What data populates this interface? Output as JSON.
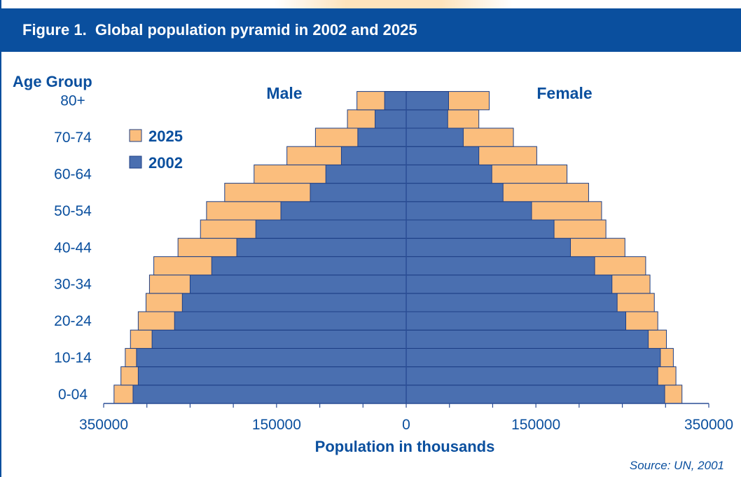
{
  "header": {
    "title": "Figure 1.  Global population pyramid in 2002 and 2025"
  },
  "source": "Source: UN, 2001",
  "colors": {
    "brand": "#0a4f9e",
    "bar_2002": "#4a6fb0",
    "bar_2025": "#fbbe7d",
    "bar_edge": "#1e3f86"
  },
  "chart_data": {
    "type": "bar",
    "orientation": "horizontal-pyramid",
    "y_title": "Age Group",
    "xlabel": "Population in thousands",
    "left_label": "Male",
    "right_label": "Female",
    "xlim": [
      -350000,
      350000
    ],
    "x_tick_labels": [
      "350000",
      "150000",
      "0",
      "150000",
      "350000"
    ],
    "x_tick_values": [
      -350000,
      -150000,
      0,
      150000,
      350000
    ],
    "y_tick_labels": [
      "80+",
      "70-74",
      "60-64",
      "50-54",
      "40-44",
      "30-34",
      "20-24",
      "10-14",
      "0-04"
    ],
    "categories": [
      "0-04",
      "5-9",
      "10-14",
      "15-19",
      "20-24",
      "25-29",
      "30-34",
      "35-39",
      "40-44",
      "45-49",
      "50-54",
      "55-59",
      "60-64",
      "65-69",
      "70-74",
      "75-79",
      "80+"
    ],
    "legend": [
      {
        "name": "2025",
        "color": "#fbbe7d"
      },
      {
        "name": "2002",
        "color": "#4a6fb0"
      }
    ],
    "series": [
      {
        "name": "2002",
        "sex": "Male",
        "values": [
          316000,
          310000,
          312000,
          294000,
          268000,
          259000,
          250000,
          225000,
          196000,
          174000,
          145000,
          111000,
          93000,
          75000,
          56000,
          36000,
          25000
        ]
      },
      {
        "name": "2002",
        "sex": "Female",
        "values": [
          299000,
          291000,
          294000,
          280000,
          254000,
          244000,
          238000,
          218000,
          190000,
          171000,
          145000,
          112000,
          99000,
          84000,
          66000,
          48000,
          49000
        ]
      },
      {
        "name": "2025",
        "sex": "Male",
        "values": [
          338000,
          330000,
          325000,
          319000,
          310000,
          301000,
          297000,
          292000,
          264000,
          238000,
          231000,
          210000,
          176000,
          138000,
          105000,
          68000,
          57000
        ]
      },
      {
        "name": "2025",
        "sex": "Female",
        "values": [
          319000,
          312000,
          309000,
          301000,
          291000,
          287000,
          282000,
          277000,
          253000,
          231000,
          226000,
          211000,
          186000,
          151000,
          124000,
          84000,
          96000
        ]
      }
    ]
  }
}
